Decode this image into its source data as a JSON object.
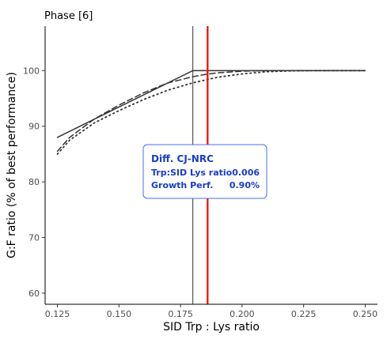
{
  "chart_data": {
    "type": "line",
    "title": "Phase [6]",
    "xlabel": "SID Trp : Lys ratio",
    "ylabel": "G:F ratio (% of best performance)",
    "xlim": [
      0.12,
      0.255
    ],
    "ylim": [
      58,
      108
    ],
    "x_ticks": [
      0.125,
      0.15,
      0.175,
      0.2,
      0.225,
      0.25
    ],
    "x_tick_labels": [
      "0.125",
      "0.150",
      "0.175",
      "0.200",
      "0.225",
      "0.250"
    ],
    "y_ticks": [
      60,
      70,
      80,
      90,
      100
    ],
    "y_tick_labels": [
      "60",
      "70",
      "80",
      "90",
      "100"
    ],
    "grid": false,
    "series": [
      {
        "style": "solid",
        "color": "#333333",
        "x": [
          0.125,
          0.18,
          0.25
        ],
        "y": [
          88,
          100,
          100
        ]
      },
      {
        "style": "dashed",
        "color": "#333333",
        "x": [
          0.125,
          0.13,
          0.14,
          0.15,
          0.16,
          0.17,
          0.18,
          0.185,
          0.19,
          0.2,
          0.21,
          0.22,
          0.25
        ],
        "y": [
          85.5,
          88,
          91.3,
          93.8,
          96.0,
          97.8,
          98.9,
          99.3,
          99.6,
          99.9,
          100,
          100,
          100
        ]
      },
      {
        "style": "dotted",
        "color": "#333333",
        "x": [
          0.125,
          0.13,
          0.14,
          0.15,
          0.16,
          0.17,
          0.18,
          0.19,
          0.2,
          0.21,
          0.22,
          0.23,
          0.24,
          0.25
        ],
        "y": [
          85.0,
          87.5,
          90.6,
          92.8,
          94.8,
          96.5,
          97.8,
          98.8,
          99.4,
          99.8,
          99.95,
          100,
          100,
          100
        ]
      }
    ],
    "vlines": [
      {
        "x": 0.18,
        "color": "#333333",
        "width": "thin"
      },
      {
        "x": 0.186,
        "color": "#ff0000",
        "width": "thick"
      }
    ],
    "annotation": {
      "title": "Diff. CJ-NRC",
      "rows": [
        {
          "label": "Trp:SID Lys ratio",
          "value": "0.006"
        },
        {
          "label": "Growth Perf.",
          "value": "0.90%"
        }
      ],
      "text_color": "#1a3cc8",
      "border_color": "#4a6cf0"
    }
  }
}
